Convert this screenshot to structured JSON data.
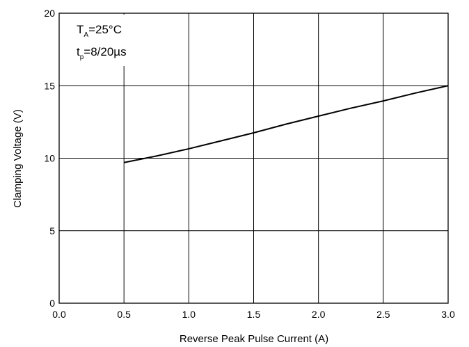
{
  "chart_data": {
    "type": "line",
    "xlabel": "Reverse Peak Pulse Current (A)",
    "ylabel": "Clamping Voltage (V)",
    "xlim": [
      0.0,
      3.0
    ],
    "ylim": [
      0,
      20
    ],
    "x_ticks": [
      0.0,
      0.5,
      1.0,
      1.5,
      2.0,
      2.5,
      3.0
    ],
    "x_tick_labels": [
      "0.0",
      "0.5",
      "1.0",
      "1.5",
      "2.0",
      "2.5",
      "3.0"
    ],
    "y_ticks": [
      0,
      5,
      10,
      15,
      20
    ],
    "y_tick_labels": [
      "0",
      "5",
      "10",
      "15",
      "20"
    ],
    "grid": true,
    "series": [
      {
        "x": [
          0.5,
          0.75,
          1.0,
          1.25,
          1.5,
          1.75,
          2.0,
          2.25,
          2.5,
          2.75,
          3.0
        ],
        "y": [
          9.7,
          10.15,
          10.65,
          11.2,
          11.75,
          12.35,
          12.9,
          13.45,
          13.95,
          14.5,
          15.0
        ]
      }
    ],
    "annotations": [
      {
        "main": "T",
        "sub": "A",
        "rest": "=25°C"
      },
      {
        "main": "t",
        "sub": "p",
        "rest": "=8/20µs"
      }
    ],
    "line_color": "#000000",
    "grid_color": "#000000"
  }
}
